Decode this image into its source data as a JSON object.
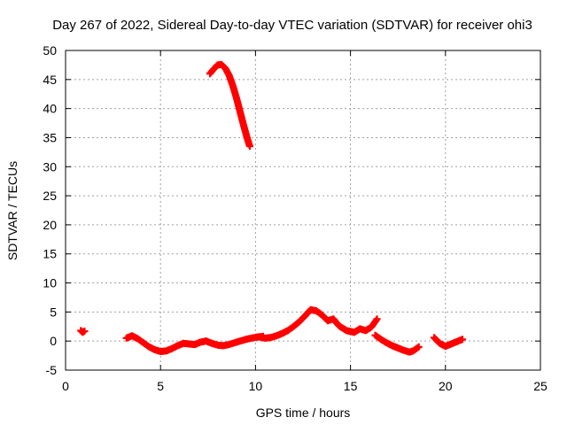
{
  "chart_data": {
    "type": "scatter",
    "title": "Day 267 of 2022, Sidereal Day-to-day VTEC variation (SDTVAR) for receiver ohi3",
    "xlabel": "GPS time / hours",
    "ylabel": "SDTVAR / TECUs",
    "xlim": [
      0,
      25
    ],
    "ylim": [
      -5,
      50
    ],
    "xticks": [
      0,
      5,
      10,
      15,
      20,
      25
    ],
    "yticks": [
      -5,
      0,
      5,
      10,
      15,
      20,
      25,
      30,
      35,
      40,
      45,
      50
    ],
    "grid": true,
    "marker": "+",
    "series": [
      {
        "name": "SDTVAR",
        "color": "#ff0000",
        "segments": [
          {
            "x": [
              0.8,
              0.9,
              1.0
            ],
            "y": [
              1.8,
              1.5,
              1.7
            ]
          },
          {
            "x": [
              3.2,
              3.5,
              3.8,
              4.1,
              4.4,
              4.7,
              5.0,
              5.3,
              5.6,
              5.9,
              6.2,
              6.5,
              6.8,
              7.1,
              7.4,
              7.7,
              8.0,
              8.3,
              8.6,
              8.9,
              9.2,
              9.5,
              9.8,
              10.1,
              10.4
            ],
            "y": [
              0.5,
              0.9,
              0.4,
              -0.3,
              -1.0,
              -1.5,
              -1.8,
              -1.7,
              -1.3,
              -0.8,
              -0.4,
              -0.5,
              -0.6,
              -0.2,
              0.0,
              -0.4,
              -0.7,
              -0.8,
              -0.6,
              -0.3,
              0.0,
              0.3,
              0.5,
              0.7,
              0.8
            ]
          },
          {
            "x": [
              7.6,
              7.8,
              8.0,
              8.2,
              8.4,
              8.6,
              8.8,
              9.0,
              9.2,
              9.4,
              9.6,
              9.7
            ],
            "y": [
              46.0,
              46.8,
              47.5,
              47.6,
              47.0,
              45.8,
              44.0,
              41.8,
              39.3,
              36.8,
              34.5,
              33.5
            ]
          },
          {
            "x": [
              10.2,
              10.5,
              10.8,
              11.1,
              11.4,
              11.7,
              12.0,
              12.3,
              12.6,
              12.9,
              13.2,
              13.5,
              13.8,
              14.1,
              14.4,
              14.8,
              15.2,
              15.5,
              15.8,
              16.1,
              16.4
            ],
            "y": [
              0.7,
              0.5,
              0.6,
              0.9,
              1.3,
              1.8,
              2.5,
              3.3,
              4.3,
              5.4,
              5.2,
              4.5,
              3.5,
              3.8,
              2.6,
              1.8,
              1.5,
              2.1,
              1.8,
              2.4,
              3.8
            ]
          },
          {
            "x": [
              16.3,
              16.6,
              16.9,
              17.2,
              17.5,
              17.8,
              18.1,
              18.3,
              18.6
            ],
            "y": [
              1.0,
              0.3,
              -0.3,
              -0.8,
              -1.2,
              -1.6,
              -1.9,
              -1.7,
              -1.0
            ]
          },
          {
            "x": [
              19.4,
              19.7,
              20.0,
              20.3,
              20.6,
              20.9
            ],
            "y": [
              0.6,
              -0.4,
              -0.9,
              -0.5,
              -0.1,
              0.3
            ]
          }
        ]
      }
    ]
  }
}
